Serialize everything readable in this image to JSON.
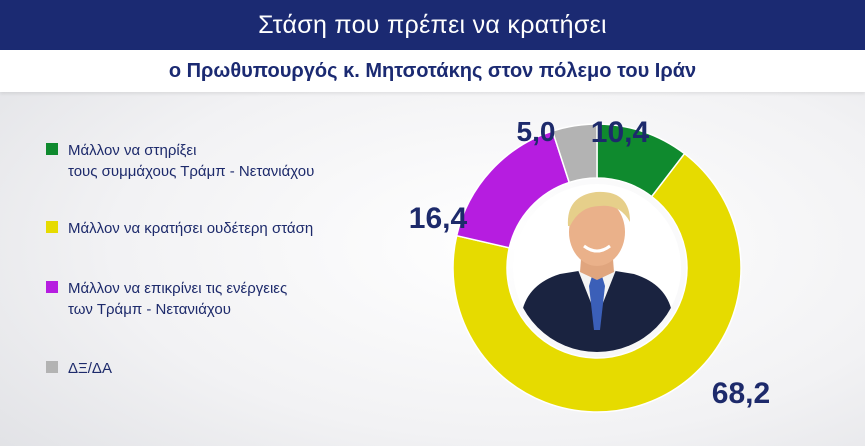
{
  "header": {
    "title": "Στάση που πρέπει να κρατήσει",
    "subtitle": "ο Πρωθυπουργός κ. Μητσοτάκης στον πόλεμο του Ιράν"
  },
  "chart_data": {
    "type": "pie",
    "donut": true,
    "center_image": "portrait",
    "legend_position": "left",
    "categories": [
      "Μάλλον να στηρίξει τους συμμάχους Τράμπ - Νετανιάχου",
      "Μάλλον να κρατήσει ουδέτερη στάση",
      "Μάλλον να επικρίνει τις ενέργειες των Τράμπ - Νετανιάχου",
      "ΔΞ/ΔΑ"
    ],
    "values": [
      10.4,
      68.2,
      16.4,
      5.0
    ],
    "value_labels": [
      "10,4",
      "68,2",
      "16,4",
      "5,0"
    ],
    "colors": [
      "#0f8a2e",
      "#e6db00",
      "#b61de0",
      "#b3b3b3"
    ],
    "legend": [
      {
        "line1": "Μάλλον να στηρίξει",
        "line2": "τους συμμάχους Τράμπ - Νετανιάχου"
      },
      {
        "line1": "Μάλλον να κρατήσει ουδέτερη στάση",
        "line2": ""
      },
      {
        "line1": "Μάλλον να επικρίνει τις ενέργειες",
        "line2": "των  Τράμπ - Νετανιάχου"
      },
      {
        "line1": "ΔΞ/ΔΑ",
        "line2": ""
      }
    ]
  }
}
